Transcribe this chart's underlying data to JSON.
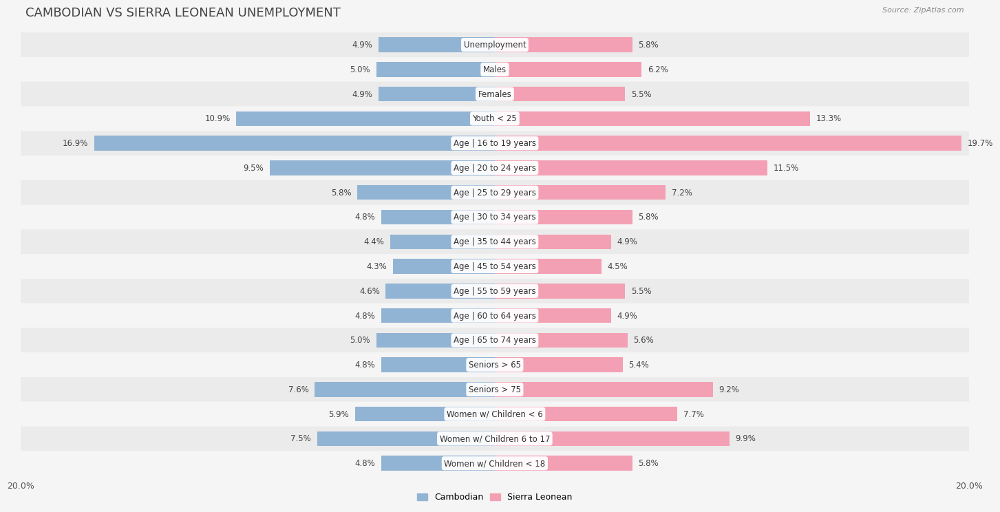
{
  "title": "CAMBODIAN VS SIERRA LEONEAN UNEMPLOYMENT",
  "source": "Source: ZipAtlas.com",
  "categories": [
    "Unemployment",
    "Males",
    "Females",
    "Youth < 25",
    "Age | 16 to 19 years",
    "Age | 20 to 24 years",
    "Age | 25 to 29 years",
    "Age | 30 to 34 years",
    "Age | 35 to 44 years",
    "Age | 45 to 54 years",
    "Age | 55 to 59 years",
    "Age | 60 to 64 years",
    "Age | 65 to 74 years",
    "Seniors > 65",
    "Seniors > 75",
    "Women w/ Children < 6",
    "Women w/ Children 6 to 17",
    "Women w/ Children < 18"
  ],
  "cambodian": [
    4.9,
    5.0,
    4.9,
    10.9,
    16.9,
    9.5,
    5.8,
    4.8,
    4.4,
    4.3,
    4.6,
    4.8,
    5.0,
    4.8,
    7.6,
    5.9,
    7.5,
    4.8
  ],
  "sierra_leonean": [
    5.8,
    6.2,
    5.5,
    13.3,
    19.7,
    11.5,
    7.2,
    5.8,
    4.9,
    4.5,
    5.5,
    4.9,
    5.6,
    5.4,
    9.2,
    7.7,
    9.9,
    5.8
  ],
  "cambodian_color": "#92b4d4",
  "sierra_leonean_color": "#f4a0b4",
  "bg_color": "#f5f5f5",
  "row_bg_even": "#ebebeb",
  "row_bg_odd": "#f5f5f5",
  "max_val": 20.0,
  "bar_height": 0.6,
  "legend_cambodian": "Cambodian",
  "legend_sierra_leonean": "Sierra Leonean",
  "title_fontsize": 13,
  "label_fontsize": 8.5,
  "value_fontsize": 8.5
}
